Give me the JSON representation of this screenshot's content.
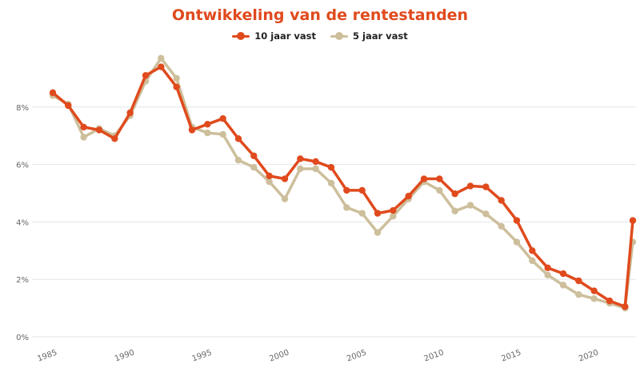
{
  "chart_data": {
    "type": "line",
    "title": "Ontwikkeling van de rentestanden",
    "xlabel": "",
    "ylabel": "",
    "xlim": [
      1985,
      2022
    ],
    "ylim": [
      0,
      10
    ],
    "x_tick_labels": [
      "1985",
      "1990",
      "1995",
      "2000",
      "2005",
      "2010",
      "2015",
      "2020"
    ],
    "y_tick_labels": [
      "0%",
      "2%",
      "4%",
      "6%",
      "8%"
    ],
    "y_ticks": [
      0,
      2,
      4,
      6,
      8
    ],
    "x_ticks": [
      1985,
      1990,
      1995,
      2000,
      2005,
      2010,
      2015,
      2020
    ],
    "grid": "horizontal",
    "legend": "top-center",
    "x": [
      1985,
      1986,
      1987,
      1988,
      1989,
      1990,
      1991,
      1992,
      1993,
      1994,
      1995,
      1996,
      1997,
      1998,
      1999,
      2000,
      2001,
      2002,
      2003,
      2004,
      2005,
      2006,
      2007,
      2008,
      2009,
      2010,
      2011,
      2012,
      2013,
      2014,
      2015,
      2016,
      2017,
      2018,
      2019,
      2020,
      2021,
      2022,
      2022.5
    ],
    "series": [
      {
        "name": "10 jaar vast",
        "color": "#e04a1d",
        "values": [
          8.5,
          8.05,
          7.3,
          7.2,
          6.9,
          7.8,
          9.1,
          9.4,
          8.7,
          7.2,
          7.4,
          7.6,
          6.9,
          6.3,
          5.6,
          5.5,
          6.2,
          6.1,
          5.9,
          5.1,
          5.1,
          4.3,
          4.4,
          4.9,
          5.5,
          5.5,
          4.98,
          5.25,
          5.22,
          4.75,
          4.05,
          3.0,
          2.4,
          2.2,
          1.95,
          1.6,
          1.25,
          1.05,
          4.05
        ]
      },
      {
        "name": "5 jaar vast",
        "color": "#cdbf9c",
        "values": [
          8.4,
          8.1,
          6.95,
          7.25,
          7.0,
          7.7,
          8.9,
          9.7,
          9.0,
          7.3,
          7.1,
          7.05,
          6.15,
          5.9,
          5.4,
          4.8,
          5.85,
          5.85,
          5.35,
          4.5,
          4.3,
          3.63,
          4.2,
          4.8,
          5.4,
          5.1,
          4.38,
          4.58,
          4.28,
          3.85,
          3.3,
          2.65,
          2.15,
          1.8,
          1.47,
          1.33,
          1.17,
          1.0,
          3.3
        ]
      }
    ]
  }
}
